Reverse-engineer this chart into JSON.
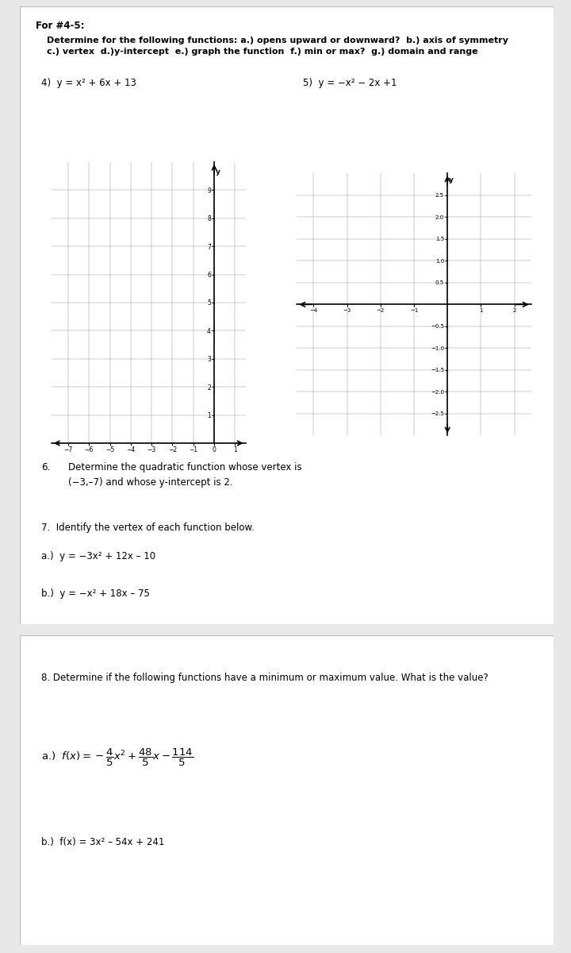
{
  "bg_color": "#e8e8e8",
  "panel1_bg": "#ffffff",
  "panel2_bg": "#ffffff",
  "header_text": "For #4-5:",
  "subheader_bold": "Determine for the following functions: a.) opens upward or downward?  b.) axis of symmetry\nc.) vertex  d.)y-intercept  e.) graph the function  f.) min or max?  g.) domain and range",
  "q4_label": "4)  y = x² + 6x + 13",
  "q5_label": "5)  y = −x² − 2x +1",
  "q6_num": "6.",
  "q6_text": "Determine the quadratic function whose vertex is\n(−3,–7) and whose y-intercept is 2.",
  "q7_text": "7.  Identify the vertex of each function below.",
  "q7a_text": "a.)  y = −3x² + 12x – 10",
  "q7b_text": "b.)  y = −x² + 18x – 75",
  "q8_text": "8. Determine if the following functions have a minimum or maximum value. What is the value?",
  "q8b_text": "b.)  f(x) = 3x² – 54x + 241",
  "grid1_xlim": [
    -7.5,
    1.5
  ],
  "grid1_ylim": [
    0,
    10
  ],
  "grid2_xlim": [
    -4.5,
    2.5
  ],
  "grid2_ylim": [
    -3,
    3
  ]
}
